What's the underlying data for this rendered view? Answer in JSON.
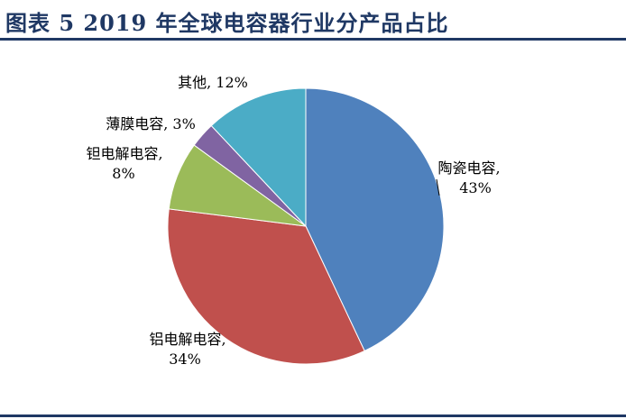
{
  "header": {
    "title": "图表 5   2019 年全球电容器行业分产品占比"
  },
  "chart_data": {
    "type": "pie",
    "title": "2019 年全球电容器行业分产品占比",
    "start_angle_deg": 0,
    "direction": "clockwise",
    "legend": "none",
    "slices": [
      {
        "label": "陶瓷电容",
        "value": 43,
        "display": "陶瓷电容, 43%",
        "color": "#4f81bd"
      },
      {
        "label": "铝电解电容",
        "value": 34,
        "display": "铝电解电容, 34%",
        "color": "#c0504d"
      },
      {
        "label": "钽电解电容",
        "value": 8,
        "display": "钽电解电容, 8%",
        "color": "#9bbb59"
      },
      {
        "label": "薄膜电容",
        "value": 3,
        "display": "薄膜电容, 3%",
        "color": "#8064a2"
      },
      {
        "label": "其他",
        "value": 12,
        "display": "其他, 12%",
        "color": "#4bacc6"
      }
    ]
  }
}
